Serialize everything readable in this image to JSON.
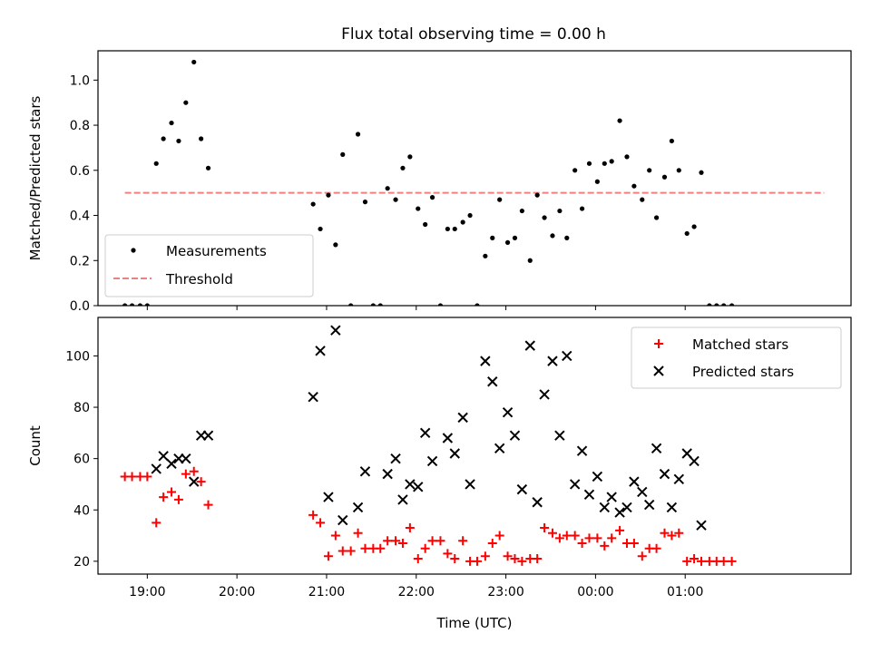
{
  "title": "Flux total observing time = 0.00 h",
  "chart_data": [
    {
      "type": "scatter",
      "ylabel": "Matched/Predicted stars",
      "xlim": [
        18.45,
        26.85
      ],
      "ylim": [
        0,
        1.13
      ],
      "yticks": [
        "0.0",
        "0.2",
        "0.4",
        "0.6",
        "0.8",
        "1.0"
      ],
      "ytick_values": [
        0,
        0.2,
        0.4,
        0.6,
        0.8,
        1.0
      ],
      "legend_position": "lower-left",
      "threshold": {
        "name": "Threshold",
        "y": 0.5,
        "x_range": [
          18.75,
          26.55
        ],
        "color": "#f08080"
      },
      "series": [
        {
          "name": "Measurements",
          "color": "#000000",
          "points": [
            [
              18.75,
              0.0
            ],
            [
              18.83,
              0.0
            ],
            [
              18.92,
              0.0
            ],
            [
              19.0,
              0.0
            ],
            [
              19.1,
              0.63
            ],
            [
              19.18,
              0.74
            ],
            [
              19.27,
              0.81
            ],
            [
              19.35,
              0.73
            ],
            [
              19.43,
              0.9
            ],
            [
              19.52,
              1.08
            ],
            [
              19.6,
              0.74
            ],
            [
              19.68,
              0.61
            ],
            [
              20.85,
              0.45
            ],
            [
              20.93,
              0.34
            ],
            [
              21.02,
              0.49
            ],
            [
              21.1,
              0.27
            ],
            [
              21.18,
              0.67
            ],
            [
              21.27,
              0.0
            ],
            [
              21.35,
              0.76
            ],
            [
              21.43,
              0.46
            ],
            [
              21.52,
              0.0
            ],
            [
              21.6,
              0.0
            ],
            [
              21.68,
              0.52
            ],
            [
              21.77,
              0.47
            ],
            [
              21.85,
              0.61
            ],
            [
              21.93,
              0.66
            ],
            [
              22.02,
              0.43
            ],
            [
              22.1,
              0.36
            ],
            [
              22.18,
              0.48
            ],
            [
              22.27,
              0.0
            ],
            [
              22.35,
              0.34
            ],
            [
              22.43,
              0.34
            ],
            [
              22.52,
              0.37
            ],
            [
              22.6,
              0.4
            ],
            [
              22.68,
              0.0
            ],
            [
              22.77,
              0.22
            ],
            [
              22.85,
              0.3
            ],
            [
              22.93,
              0.47
            ],
            [
              23.02,
              0.28
            ],
            [
              23.1,
              0.3
            ],
            [
              23.18,
              0.42
            ],
            [
              23.27,
              0.2
            ],
            [
              23.35,
              0.49
            ],
            [
              23.43,
              0.39
            ],
            [
              23.52,
              0.31
            ],
            [
              23.6,
              0.42
            ],
            [
              23.68,
              0.3
            ],
            [
              23.77,
              0.6
            ],
            [
              23.85,
              0.43
            ],
            [
              23.93,
              0.63
            ],
            [
              24.02,
              0.55
            ],
            [
              24.1,
              0.63
            ],
            [
              24.18,
              0.64
            ],
            [
              24.27,
              0.82
            ],
            [
              24.35,
              0.66
            ],
            [
              24.43,
              0.53
            ],
            [
              24.52,
              0.47
            ],
            [
              24.6,
              0.6
            ],
            [
              24.68,
              0.39
            ],
            [
              24.77,
              0.57
            ],
            [
              24.85,
              0.73
            ],
            [
              24.93,
              0.6
            ],
            [
              25.02,
              0.32
            ],
            [
              25.1,
              0.35
            ],
            [
              25.18,
              0.59
            ],
            [
              25.27,
              0.0
            ],
            [
              25.35,
              0.0
            ],
            [
              25.43,
              0.0
            ],
            [
              25.52,
              0.0
            ]
          ]
        }
      ]
    },
    {
      "type": "scatter",
      "xlabel": "Time (UTC)",
      "ylabel": "Count",
      "xlim": [
        18.45,
        26.85
      ],
      "ylim": [
        15,
        115
      ],
      "yticks": [
        "20",
        "40",
        "60",
        "80",
        "100"
      ],
      "ytick_values": [
        20,
        40,
        60,
        80,
        100
      ],
      "xticks": [
        "19:00",
        "20:00",
        "21:00",
        "22:00",
        "23:00",
        "00:00",
        "01:00"
      ],
      "xtick_values": [
        19,
        20,
        21,
        22,
        23,
        24,
        25
      ],
      "legend_position": "upper-right",
      "series": [
        {
          "name": "Matched stars",
          "color": "#ff0000",
          "marker": "plus",
          "points": [
            [
              18.75,
              53
            ],
            [
              18.83,
              53
            ],
            [
              18.92,
              53
            ],
            [
              19.0,
              53
            ],
            [
              19.1,
              35
            ],
            [
              19.18,
              45
            ],
            [
              19.27,
              47
            ],
            [
              19.35,
              44
            ],
            [
              19.43,
              54
            ],
            [
              19.52,
              55
            ],
            [
              19.6,
              51
            ],
            [
              19.68,
              42
            ],
            [
              20.85,
              38
            ],
            [
              20.93,
              35
            ],
            [
              21.02,
              22
            ],
            [
              21.1,
              30
            ],
            [
              21.18,
              24
            ],
            [
              21.27,
              24
            ],
            [
              21.35,
              31
            ],
            [
              21.43,
              25
            ],
            [
              21.52,
              25
            ],
            [
              21.6,
              25
            ],
            [
              21.68,
              28
            ],
            [
              21.77,
              28
            ],
            [
              21.85,
              27
            ],
            [
              21.93,
              33
            ],
            [
              22.02,
              21
            ],
            [
              22.1,
              25
            ],
            [
              22.18,
              28
            ],
            [
              22.27,
              28
            ],
            [
              22.35,
              23
            ],
            [
              22.43,
              21
            ],
            [
              22.52,
              28
            ],
            [
              22.6,
              20
            ],
            [
              22.68,
              20
            ],
            [
              22.77,
              22
            ],
            [
              22.85,
              27
            ],
            [
              22.93,
              30
            ],
            [
              23.02,
              22
            ],
            [
              23.1,
              21
            ],
            [
              23.18,
              20
            ],
            [
              23.27,
              21
            ],
            [
              23.35,
              21
            ],
            [
              23.43,
              33
            ],
            [
              23.52,
              31
            ],
            [
              23.6,
              29
            ],
            [
              23.68,
              30
            ],
            [
              23.77,
              30
            ],
            [
              23.85,
              27
            ],
            [
              23.93,
              29
            ],
            [
              24.02,
              29
            ],
            [
              24.1,
              26
            ],
            [
              24.18,
              29
            ],
            [
              24.27,
              32
            ],
            [
              24.35,
              27
            ],
            [
              24.43,
              27
            ],
            [
              24.52,
              22
            ],
            [
              24.6,
              25
            ],
            [
              24.68,
              25
            ],
            [
              24.77,
              31
            ],
            [
              24.85,
              30
            ],
            [
              24.93,
              31
            ],
            [
              25.02,
              20
            ],
            [
              25.1,
              21
            ],
            [
              25.18,
              20
            ],
            [
              25.27,
              20
            ],
            [
              25.35,
              20
            ],
            [
              25.43,
              20
            ],
            [
              25.52,
              20
            ]
          ]
        },
        {
          "name": "Predicted stars",
          "color": "#000000",
          "marker": "x",
          "points": [
            [
              19.1,
              56
            ],
            [
              19.18,
              61
            ],
            [
              19.27,
              58
            ],
            [
              19.35,
              60
            ],
            [
              19.43,
              60
            ],
            [
              19.52,
              51
            ],
            [
              19.6,
              69
            ],
            [
              19.68,
              69
            ],
            [
              20.85,
              84
            ],
            [
              20.93,
              102
            ],
            [
              21.02,
              45
            ],
            [
              21.1,
              110
            ],
            [
              21.18,
              36
            ],
            [
              21.35,
              41
            ],
            [
              21.43,
              55
            ],
            [
              21.68,
              54
            ],
            [
              21.77,
              60
            ],
            [
              21.85,
              44
            ],
            [
              21.93,
              50
            ],
            [
              22.02,
              49
            ],
            [
              22.1,
              70
            ],
            [
              22.18,
              59
            ],
            [
              22.35,
              68
            ],
            [
              22.43,
              62
            ],
            [
              22.52,
              76
            ],
            [
              22.6,
              50
            ],
            [
              22.77,
              98
            ],
            [
              22.85,
              90
            ],
            [
              22.93,
              64
            ],
            [
              23.02,
              78
            ],
            [
              23.1,
              69
            ],
            [
              23.18,
              48
            ],
            [
              23.27,
              104
            ],
            [
              23.35,
              43
            ],
            [
              23.43,
              85
            ],
            [
              23.52,
              98
            ],
            [
              23.6,
              69
            ],
            [
              23.68,
              100
            ],
            [
              23.77,
              50
            ],
            [
              23.85,
              63
            ],
            [
              23.93,
              46
            ],
            [
              24.02,
              53
            ],
            [
              24.1,
              41
            ],
            [
              24.18,
              45
            ],
            [
              24.27,
              39
            ],
            [
              24.35,
              41
            ],
            [
              24.43,
              51
            ],
            [
              24.52,
              47
            ],
            [
              24.6,
              42
            ],
            [
              24.68,
              64
            ],
            [
              24.77,
              54
            ],
            [
              24.85,
              41
            ],
            [
              24.93,
              52
            ],
            [
              25.02,
              62
            ],
            [
              25.1,
              59
            ],
            [
              25.18,
              34
            ]
          ]
        }
      ]
    }
  ]
}
